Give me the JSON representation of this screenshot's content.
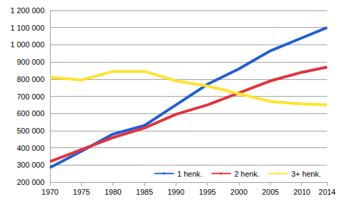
{
  "chart_data": {
    "type": "line",
    "x": [
      1970,
      1975,
      1980,
      1985,
      1990,
      1995,
      2000,
      2005,
      2010,
      2014
    ],
    "series": [
      {
        "name": "1 henk.",
        "color": "#1f5ed6",
        "values": [
          285000,
          380000,
          480000,
          530000,
          650000,
          770000,
          860000,
          965000,
          1040000,
          1100000
        ]
      },
      {
        "name": "2 henk.",
        "color": "#e3323b",
        "values": [
          320000,
          390000,
          460000,
          515000,
          595000,
          650000,
          720000,
          790000,
          840000,
          870000
        ]
      },
      {
        "name": "3+ henk.",
        "color": "#ffe32b",
        "values": [
          810000,
          795000,
          845000,
          845000,
          790000,
          760000,
          715000,
          670000,
          655000,
          650000
        ]
      }
    ],
    "xlim": [
      1970,
      2014
    ],
    "xticks": [
      1970,
      1975,
      1980,
      1985,
      1990,
      1995,
      2000,
      2005,
      2010,
      2014
    ],
    "ylim": [
      200000,
      1200000
    ],
    "yticks": [
      {
        "value": 200000,
        "label": "200 000"
      },
      {
        "value": 300000,
        "label": "300 000"
      },
      {
        "value": 400000,
        "label": "400 000"
      },
      {
        "value": 500000,
        "label": "500 000"
      },
      {
        "value": 600000,
        "label": "600 000"
      },
      {
        "value": 700000,
        "label": "700 000"
      },
      {
        "value": 800000,
        "label": "800 000"
      },
      {
        "value": 900000,
        "label": "900 000"
      },
      {
        "value": 1000000,
        "label": "1 000 000"
      },
      {
        "value": 1100000,
        "label": "1 100 000"
      },
      {
        "value": 1200000,
        "label": "1 200 000"
      }
    ],
    "grid": true,
    "legend": "lower right"
  }
}
